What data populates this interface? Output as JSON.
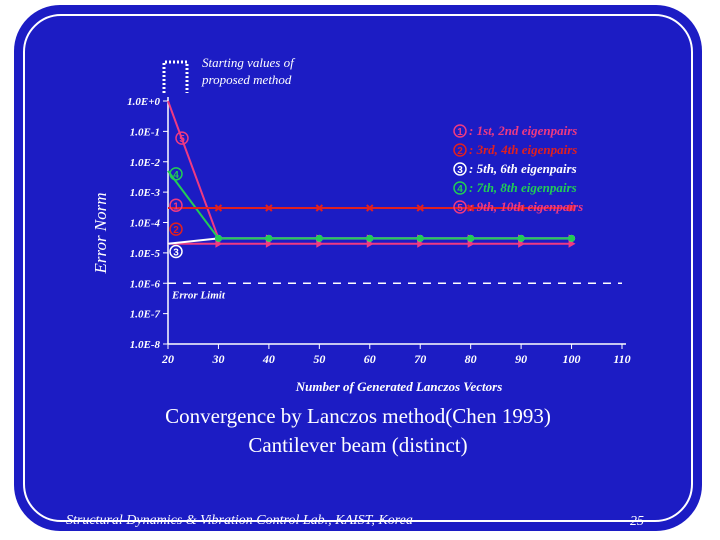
{
  "slide": {
    "caption_line1": "Convergence by Lanczos method(Chen 1993)",
    "caption_line2": "Cantilever beam (distinct)",
    "footer": "Structural Dynamics & Vibration Control Lab., KAIST, Korea",
    "page_number": "25",
    "colors": {
      "background": "#1c1cc4",
      "border": "#ffffff"
    }
  },
  "chart_data": {
    "type": "line",
    "title": "",
    "xlabel": "Number of Generated Lanczos Vectors",
    "ylabel": "Error Norm",
    "x_ticks": [
      20,
      30,
      40,
      50,
      60,
      70,
      80,
      90,
      100,
      110
    ],
    "y_tick_exponents": [
      0,
      -1,
      -2,
      -3,
      -4,
      -5,
      -6,
      -7,
      -8
    ],
    "y_tick_labels": [
      "1.0E+0",
      "1.0E-1",
      "1.0E-2",
      "1.0E-3",
      "1.0E-4",
      "1.0E-5",
      "1.0E-6",
      "1.0E-7",
      "1.0E-8"
    ],
    "xlim": [
      20,
      110
    ],
    "ylim": [
      1e-08,
      1
    ],
    "yscale": "log",
    "grid": false,
    "legend_position": "top-right",
    "starting_values_note": "Starting values of proposed method",
    "error_limit": {
      "label": "Error Limit",
      "value": 1e-06
    },
    "series": [
      {
        "name": "①: 1st, 2nd eigenpairs",
        "number": "1",
        "color": "#ee3a82",
        "marker": "triangle",
        "x": [
          20,
          30,
          40,
          50,
          60,
          70,
          80,
          90,
          100
        ],
        "y": [
          1.0,
          3e-05,
          3e-05,
          3e-05,
          3e-05,
          3e-05,
          3e-05,
          3e-05,
          3e-05
        ],
        "start_value": 0.0005
      },
      {
        "name": "②: 3rd, 4th eigenpairs",
        "number": "2",
        "color": "#e02020",
        "marker": "x",
        "x": [
          20,
          30,
          40,
          50,
          60,
          70,
          80,
          90,
          100
        ],
        "y": [
          0.0003,
          0.0003,
          0.0003,
          0.0003,
          0.0003,
          0.0003,
          0.0003,
          0.0003,
          0.0003
        ],
        "start_value": 0.00015
      },
      {
        "name": "③: 5th, 6th eigenpairs",
        "number": "3",
        "color": "#ffffff",
        "marker": "circle",
        "x": [
          20,
          30,
          40,
          50,
          60,
          70,
          80,
          90,
          100
        ],
        "y": [
          2e-05,
          3e-05,
          3e-05,
          3e-05,
          3e-05,
          3e-05,
          3e-05,
          3e-05,
          3e-05
        ],
        "start_value": 1.5e-05
      },
      {
        "name": "④: 7th, 8th eigenpairs",
        "number": "4",
        "color": "#22cc55",
        "marker": "circle",
        "x": [
          20,
          30,
          40,
          50,
          60,
          70,
          80,
          90,
          100
        ],
        "y": [
          0.005,
          3e-05,
          3e-05,
          3e-05,
          3e-05,
          3e-05,
          3e-05,
          3e-05,
          3e-05
        ],
        "start_value": 0.004
      },
      {
        "name": "⑤: 9th, 10th eigenpairs",
        "number": "5",
        "color": "#ee3a82",
        "marker": "triangle",
        "x": [
          20,
          30,
          40,
          50,
          60,
          70,
          80,
          90,
          100
        ],
        "y": [
          2e-05,
          2e-05,
          2e-05,
          2e-05,
          2e-05,
          2e-05,
          2e-05,
          2e-05,
          2e-05
        ],
        "start_value": 0.06
      }
    ]
  }
}
